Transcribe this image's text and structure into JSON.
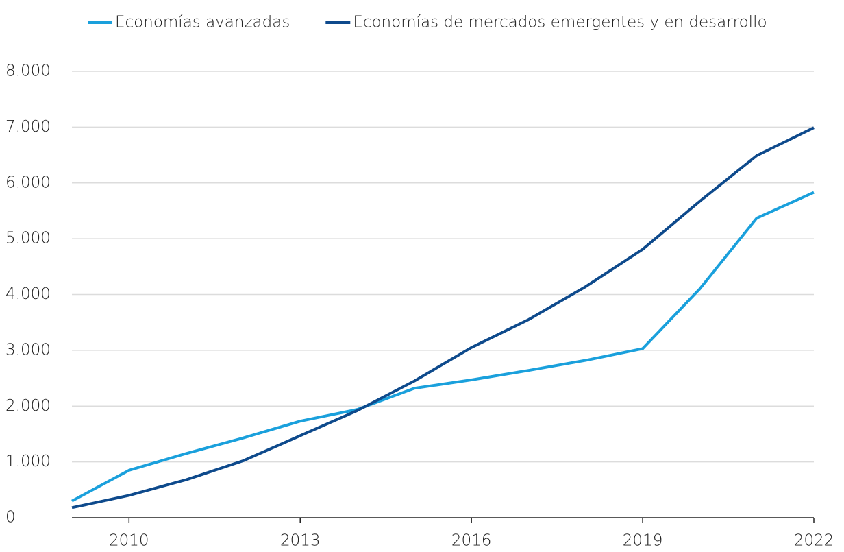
{
  "chart_data": {
    "type": "line",
    "x": [
      2009,
      2010,
      2011,
      2012,
      2013,
      2014,
      2015,
      2016,
      2017,
      2018,
      2019,
      2020,
      2021,
      2022
    ],
    "series": [
      {
        "name": "Economías avanzadas",
        "color": "#1aa0dc",
        "values": [
          300,
          850,
          1150,
          1430,
          1730,
          1940,
          2320,
          2470,
          2640,
          2820,
          3030,
          4100,
          5370,
          5830
        ]
      },
      {
        "name": "Economías de mercados emergentes y en desarrollo",
        "color": "#0e4a8c",
        "values": [
          180,
          400,
          680,
          1020,
          1470,
          1920,
          2450,
          3050,
          3550,
          4140,
          4810,
          5670,
          6490,
          6990
        ]
      }
    ],
    "xlim": [
      2009,
      2022
    ],
    "xticks": [
      2010,
      2013,
      2016,
      2019,
      2022
    ],
    "ylim": [
      0,
      8000
    ],
    "yticks": [
      0,
      {
        "value": 1000,
        "label": "1.000"
      },
      {
        "value": 2000,
        "label": "2.000"
      },
      {
        "value": 3000,
        "label": "3.000"
      },
      {
        "value": 4000,
        "label": "4.000"
      },
      {
        "value": 5000,
        "label": "5.000"
      },
      {
        "value": 6000,
        "label": "6.000"
      },
      {
        "value": 7000,
        "label": "7.000"
      },
      {
        "value": 8000,
        "label": "8.000"
      }
    ],
    "grid": true,
    "legend": "top"
  }
}
